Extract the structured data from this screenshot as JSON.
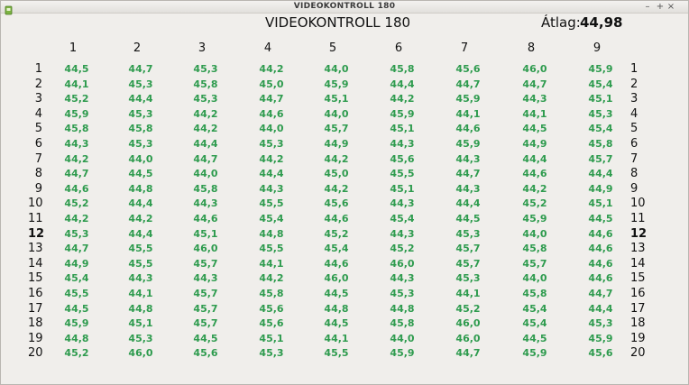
{
  "window": {
    "title": "VIDEOKONTROLL 180",
    "minimize_glyph": "–",
    "maximize_glyph": "+",
    "close_glyph": "×"
  },
  "header": {
    "app_title": "VIDEOKONTROLL 180",
    "average_label": "Átlag:",
    "average_value": "44,98"
  },
  "columns": [
    "1",
    "2",
    "3",
    "4",
    "5",
    "6",
    "7",
    "8",
    "9"
  ],
  "rows": [
    {
      "label": "1",
      "bold": false,
      "values": [
        "44,5",
        "44,7",
        "45,3",
        "44,2",
        "44,0",
        "45,8",
        "45,6",
        "46,0",
        "45,9"
      ]
    },
    {
      "label": "2",
      "bold": false,
      "values": [
        "44,1",
        "45,3",
        "45,8",
        "45,0",
        "45,9",
        "44,4",
        "44,7",
        "44,7",
        "45,4"
      ]
    },
    {
      "label": "3",
      "bold": false,
      "values": [
        "45,2",
        "44,4",
        "45,3",
        "44,7",
        "45,1",
        "44,2",
        "45,9",
        "44,3",
        "45,1"
      ]
    },
    {
      "label": "4",
      "bold": false,
      "values": [
        "45,9",
        "45,3",
        "44,2",
        "44,6",
        "44,0",
        "45,9",
        "44,1",
        "44,1",
        "45,3"
      ]
    },
    {
      "label": "5",
      "bold": false,
      "values": [
        "45,8",
        "45,8",
        "44,2",
        "44,0",
        "45,7",
        "45,1",
        "44,6",
        "44,5",
        "45,4"
      ]
    },
    {
      "label": "6",
      "bold": false,
      "values": [
        "44,3",
        "45,3",
        "44,4",
        "45,3",
        "44,9",
        "44,3",
        "45,9",
        "44,9",
        "45,8"
      ]
    },
    {
      "label": "7",
      "bold": false,
      "values": [
        "44,2",
        "44,0",
        "44,7",
        "44,2",
        "44,2",
        "45,6",
        "44,3",
        "44,4",
        "45,7"
      ]
    },
    {
      "label": "8",
      "bold": false,
      "values": [
        "44,7",
        "44,5",
        "44,0",
        "44,4",
        "45,0",
        "45,5",
        "44,7",
        "44,6",
        "44,4"
      ]
    },
    {
      "label": "9",
      "bold": false,
      "values": [
        "44,6",
        "44,8",
        "45,8",
        "44,3",
        "44,2",
        "45,1",
        "44,3",
        "44,2",
        "44,9"
      ]
    },
    {
      "label": "10",
      "bold": false,
      "values": [
        "45,2",
        "44,4",
        "44,3",
        "45,5",
        "45,6",
        "44,3",
        "44,4",
        "45,2",
        "45,1"
      ]
    },
    {
      "label": "11",
      "bold": false,
      "values": [
        "44,2",
        "44,2",
        "44,6",
        "45,4",
        "44,6",
        "45,4",
        "44,5",
        "45,9",
        "44,5"
      ]
    },
    {
      "label": "12",
      "bold": true,
      "values": [
        "45,3",
        "44,4",
        "45,1",
        "44,8",
        "45,2",
        "44,3",
        "45,3",
        "44,0",
        "44,6"
      ]
    },
    {
      "label": "13",
      "bold": false,
      "values": [
        "44,7",
        "45,5",
        "46,0",
        "45,5",
        "45,4",
        "45,2",
        "45,7",
        "45,8",
        "44,6"
      ]
    },
    {
      "label": "14",
      "bold": false,
      "values": [
        "44,9",
        "45,5",
        "45,7",
        "44,1",
        "44,6",
        "46,0",
        "45,7",
        "45,7",
        "44,6"
      ]
    },
    {
      "label": "15",
      "bold": false,
      "values": [
        "45,4",
        "44,3",
        "44,3",
        "44,2",
        "46,0",
        "44,3",
        "45,3",
        "44,0",
        "44,6"
      ]
    },
    {
      "label": "16",
      "bold": false,
      "values": [
        "45,5",
        "44,1",
        "45,7",
        "45,8",
        "44,5",
        "45,3",
        "44,1",
        "45,8",
        "44,7"
      ]
    },
    {
      "label": "17",
      "bold": false,
      "values": [
        "44,5",
        "44,8",
        "45,7",
        "45,6",
        "44,8",
        "44,8",
        "45,2",
        "45,4",
        "44,4"
      ]
    },
    {
      "label": "18",
      "bold": false,
      "values": [
        "45,9",
        "45,1",
        "45,7",
        "45,6",
        "44,5",
        "45,8",
        "46,0",
        "45,4",
        "45,3"
      ]
    },
    {
      "label": "19",
      "bold": false,
      "values": [
        "44,8",
        "45,3",
        "44,5",
        "45,1",
        "44,1",
        "44,0",
        "46,0",
        "44,5",
        "45,9"
      ]
    },
    {
      "label": "20",
      "bold": false,
      "values": [
        "45,2",
        "46,0",
        "45,6",
        "45,3",
        "45,5",
        "45,9",
        "44,7",
        "45,9",
        "45,6"
      ]
    }
  ],
  "colors": {
    "value_text": "#2e9b4e",
    "background": "#f0eeeb"
  }
}
